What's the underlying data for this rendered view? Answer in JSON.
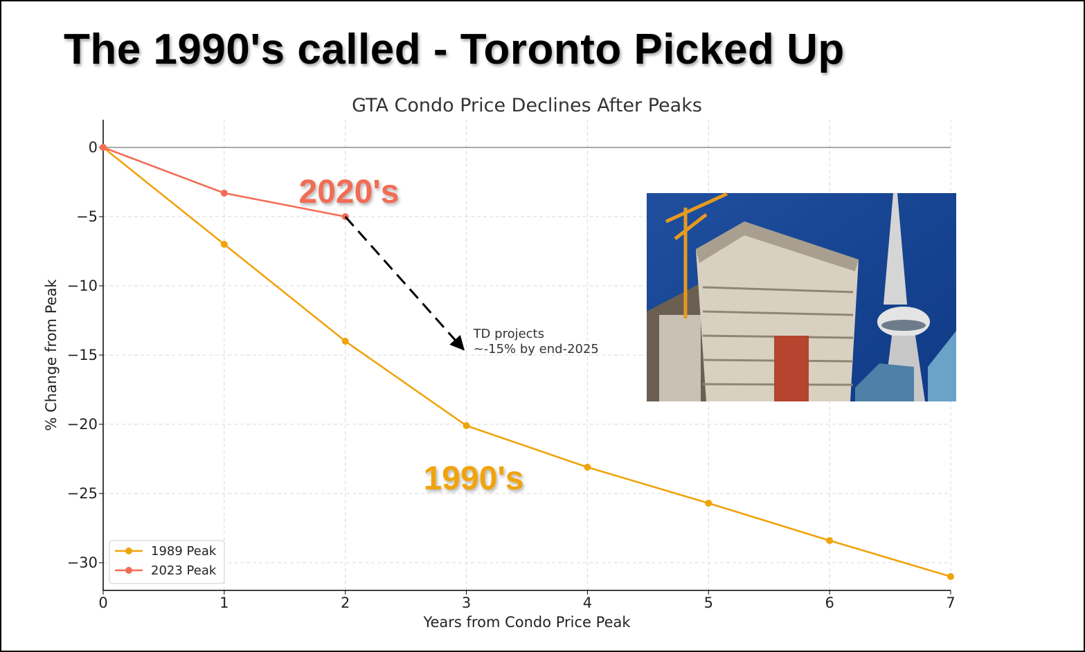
{
  "headline": "The 1990's called - Toronto Picked Up",
  "colors": {
    "series_1989": "#f0a30a",
    "series_2023": "#f26c55",
    "arrow": "#000000",
    "grid": "#d8d8d8"
  },
  "chart_data": {
    "type": "line",
    "title": "GTA Condo Price Declines After Peaks",
    "xlabel": "Years from Condo Price Peak",
    "ylabel": "% Change from Peak",
    "xlim": [
      0,
      7
    ],
    "ylim": [
      -32,
      2
    ],
    "xticks": [
      "0",
      "1",
      "2",
      "3",
      "4",
      "5",
      "6",
      "7"
    ],
    "yticks": [
      "0",
      "−5",
      "−10",
      "−15",
      "−20",
      "−25",
      "−30"
    ],
    "grid": true,
    "legend_position": "lower-left",
    "series": [
      {
        "name": "1989 Peak",
        "x": [
          0,
          1,
          2,
          3,
          4,
          5,
          6,
          7
        ],
        "y": [
          0,
          -7,
          -14,
          -20.1,
          -23.1,
          -25.7,
          -28.4,
          -31
        ]
      },
      {
        "name": "2023 Peak",
        "x": [
          0,
          1,
          2
        ],
        "y": [
          0,
          -3.3,
          -5
        ]
      }
    ],
    "series_labels": [
      {
        "text": "2020's"
      },
      {
        "text": "1990's"
      }
    ],
    "annotation": {
      "lines": [
        "TD projects",
        "~-15% by end-2025"
      ],
      "from": [
        2,
        -5
      ],
      "to": [
        3,
        -14.8
      ]
    },
    "inset_image": "photo of condo towers under construction with cranes next to the CN Tower"
  }
}
